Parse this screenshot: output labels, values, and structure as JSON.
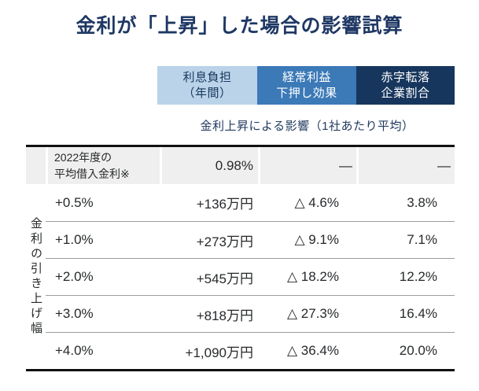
{
  "title": "金利が「上昇」した場合の影響試算",
  "caption": "金利上昇による影響（1社あたり平均）",
  "side_label": "金利の引き上げ幅",
  "colors": {
    "title_navy": "#1f3864",
    "header_light_blue": "#bad3e9",
    "header_mid_blue": "#3b79b7",
    "header_dark_navy": "#17365d",
    "baseline_row_gray": "#f0efef",
    "separator_gray": "#9c9c9c",
    "border_black": "#111111"
  },
  "header": {
    "columns": [
      {
        "line1": "利息負担",
        "line2": "（年間）"
      },
      {
        "line1": "経常利益",
        "line2": "下押し効果"
      },
      {
        "line1": "赤字転落",
        "line2": "企業割合"
      }
    ]
  },
  "table": {
    "baseline_row": {
      "label_line1": "2022年度の",
      "label_line2": "平均借入金利※",
      "interest": "0.98%",
      "profit": "—",
      "deficit": "—"
    },
    "rows": [
      {
        "label": "+0.5%",
        "interest": "+136万円",
        "profit": "△ 4.6%",
        "deficit": "3.8%"
      },
      {
        "label": "+1.0%",
        "interest": "+273万円",
        "profit": "△ 9.1%",
        "deficit": "7.1%"
      },
      {
        "label": "+2.0%",
        "interest": "+545万円",
        "profit": "△ 18.2%",
        "deficit": "12.2%"
      },
      {
        "label": "+3.0%",
        "interest": "+818万円",
        "profit": "△ 27.3%",
        "deficit": "16.4%"
      },
      {
        "label": "+4.0%",
        "interest": "+1,090万円",
        "profit": "△ 36.4%",
        "deficit": "20.0%"
      }
    ]
  },
  "chart_data": {
    "type": "table",
    "title": "金利が「上昇」した場合の影響試算",
    "subtitle": "金利上昇による影響（1社あたり平均）",
    "row_group_label": "金利の引き上げ幅",
    "columns": [
      "",
      "利息負担（年間）",
      "経常利益下押し効果",
      "赤字転落企業割合"
    ],
    "rows": [
      [
        "2022年度の平均借入金利※",
        "0.98%",
        "—",
        "—"
      ],
      [
        "+0.5%",
        "+136万円",
        "△ 4.6%",
        "3.8%"
      ],
      [
        "+1.0%",
        "+273万円",
        "△ 9.1%",
        "7.1%"
      ],
      [
        "+2.0%",
        "+545万円",
        "△ 18.2%",
        "12.2%"
      ],
      [
        "+3.0%",
        "+818万円",
        "△ 27.3%",
        "16.4%"
      ],
      [
        "+4.0%",
        "+1,090万円",
        "△ 36.4%",
        "20.0%"
      ]
    ]
  }
}
